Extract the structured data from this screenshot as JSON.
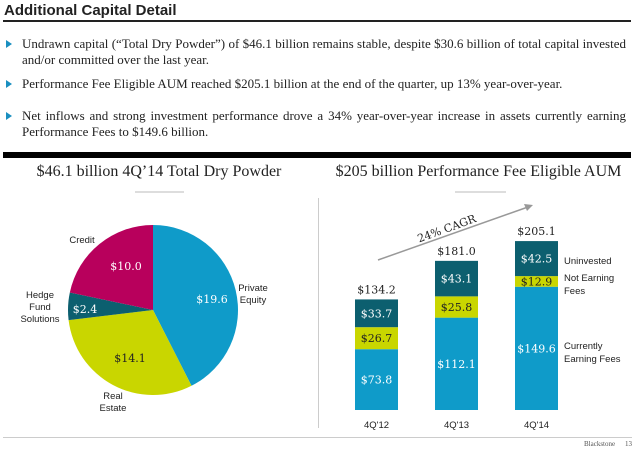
{
  "header": {
    "title": "Additional Capital Detail"
  },
  "bullets": [
    "Undrawn capital (“Total Dry Powder”) of $46.1 billion remains stable, despite $30.6 billion of total capital invested and/or committed over the last year.",
    "Performance Fee Eligible AUM reached $205.1 billion at the end of the quarter, up 13% year-over-year.",
    "Net inflows and strong investment performance drove a 34% year-over-year increase in assets currently earning Performance Fees to $149.6 billion."
  ],
  "footer": {
    "brand": "Blackstone",
    "page": "13"
  },
  "chart_data": [
    {
      "type": "pie",
      "title": "$46.1 billion 4Q’14 Total Dry Powder",
      "slices": [
        {
          "name": "Private Equity",
          "label_lines": [
            "Private",
            "Equity"
          ],
          "value": 19.6,
          "value_label": "$19.6",
          "color": "#0f9bc9"
        },
        {
          "name": "Real Estate",
          "label_lines": [
            "Real",
            "Estate"
          ],
          "value": 14.1,
          "value_label": "$14.1",
          "color": "#c9d600"
        },
        {
          "name": "Hedge Fund Solutions",
          "label_lines": [
            "Hedge",
            "Fund",
            "Solutions"
          ],
          "value": 2.4,
          "value_label": "$2.4",
          "color": "#0c5f6f"
        },
        {
          "name": "Credit",
          "label_lines": [
            "Credit"
          ],
          "value": 10.0,
          "value_label": "$10.0",
          "color": "#b8005c"
        }
      ]
    },
    {
      "type": "bar",
      "stacked": true,
      "title": "$205 billion Performance Fee Eligible AUM",
      "annotation": "24% CAGR",
      "categories": [
        "4Q'12",
        "4Q'13",
        "4Q'14"
      ],
      "totals": [
        134.2,
        181.0,
        205.1
      ],
      "total_labels": [
        "$134.2",
        "$181.0",
        "$205.1"
      ],
      "series": [
        {
          "name": "Currently Earning Fees",
          "label_lines": [
            "Currently",
            "Earning Fees"
          ],
          "values": [
            73.8,
            112.1,
            149.6
          ],
          "value_labels": [
            "$73.8",
            "$112.1",
            "$149.6"
          ],
          "color": "#0f9bc9",
          "text_color": "#ffffff"
        },
        {
          "name": "Not Earning Fees",
          "label_lines": [
            "Not Earning",
            "Fees"
          ],
          "values": [
            26.7,
            25.8,
            12.9
          ],
          "value_labels": [
            "$26.7",
            "$25.8",
            "$12.9"
          ],
          "color": "#c9d600",
          "text_color": "#222222"
        },
        {
          "name": "Uninvested",
          "label_lines": [
            "Uninvested"
          ],
          "values": [
            33.7,
            43.1,
            42.5
          ],
          "value_labels": [
            "$33.7",
            "$43.1",
            "$42.5"
          ],
          "color": "#0c5f6f",
          "text_color": "#ffffff"
        }
      ],
      "ylim": [
        0,
        205.1
      ]
    }
  ]
}
